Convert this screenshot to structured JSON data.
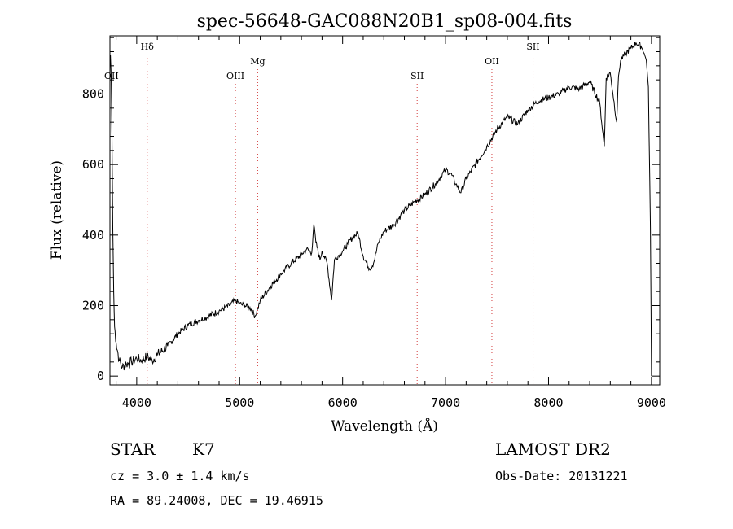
{
  "chart_data": {
    "type": "line",
    "title": "spec-56648-GAC088N20B1_sp08-004.fits",
    "xlabel": "Wavelength (Å)",
    "ylabel": "Flux (relative)",
    "xlim": [
      3740,
      9080
    ],
    "ylim": [
      -25,
      965
    ],
    "x_ticks": [
      4000,
      5000,
      6000,
      7000,
      8000,
      9000
    ],
    "y_ticks": [
      0,
      200,
      400,
      600,
      800
    ],
    "grid": false,
    "line_marks": [
      {
        "label": "OII",
        "wavelength": 3727,
        "tier": 2
      },
      {
        "label": "Hδ",
        "wavelength": 4102,
        "tier": 0
      },
      {
        "label": "OIII",
        "wavelength": 4959,
        "tier": 2
      },
      {
        "label": "Mg",
        "wavelength": 5175,
        "tier": 1
      },
      {
        "label": "SII",
        "wavelength": 6724,
        "tier": 2
      },
      {
        "label": "OII",
        "wavelength": 7450,
        "tier": 1
      },
      {
        "label": "SII",
        "wavelength": 7850,
        "tier": 0
      }
    ],
    "series": [
      {
        "points": [
          [
            3745,
            910
          ],
          [
            3752,
            850
          ],
          [
            3760,
            680
          ],
          [
            3768,
            420
          ],
          [
            3776,
            240
          ],
          [
            3785,
            140
          ],
          [
            3800,
            95
          ],
          [
            3830,
            45
          ],
          [
            3860,
            25
          ],
          [
            3900,
            35
          ],
          [
            3950,
            40
          ],
          [
            4000,
            50
          ],
          [
            4050,
            45
          ],
          [
            4100,
            55
          ],
          [
            4150,
            45
          ],
          [
            4200,
            60
          ],
          [
            4300,
            85
          ],
          [
            4400,
            120
          ],
          [
            4500,
            145
          ],
          [
            4600,
            158
          ],
          [
            4700,
            170
          ],
          [
            4800,
            185
          ],
          [
            4900,
            200
          ],
          [
            4960,
            215
          ],
          [
            5000,
            205
          ],
          [
            5050,
            200
          ],
          [
            5100,
            195
          ],
          [
            5150,
            170
          ],
          [
            5175,
            190
          ],
          [
            5200,
            215
          ],
          [
            5300,
            255
          ],
          [
            5400,
            290
          ],
          [
            5500,
            320
          ],
          [
            5600,
            345
          ],
          [
            5650,
            360
          ],
          [
            5700,
            350
          ],
          [
            5720,
            430
          ],
          [
            5740,
            380
          ],
          [
            5780,
            330
          ],
          [
            5800,
            355
          ],
          [
            5850,
            320
          ],
          [
            5893,
            215
          ],
          [
            5920,
            330
          ],
          [
            6000,
            355
          ],
          [
            6050,
            375
          ],
          [
            6100,
            395
          ],
          [
            6150,
            405
          ],
          [
            6200,
            340
          ],
          [
            6260,
            305
          ],
          [
            6300,
            320
          ],
          [
            6350,
            380
          ],
          [
            6400,
            410
          ],
          [
            6500,
            430
          ],
          [
            6563,
            455
          ],
          [
            6600,
            470
          ],
          [
            6700,
            495
          ],
          [
            6800,
            515
          ],
          [
            6900,
            545
          ],
          [
            6950,
            565
          ],
          [
            7000,
            585
          ],
          [
            7050,
            575
          ],
          [
            7100,
            545
          ],
          [
            7150,
            520
          ],
          [
            7200,
            560
          ],
          [
            7300,
            605
          ],
          [
            7400,
            650
          ],
          [
            7500,
            700
          ],
          [
            7600,
            735
          ],
          [
            7700,
            715
          ],
          [
            7800,
            755
          ],
          [
            7900,
            780
          ],
          [
            8000,
            790
          ],
          [
            8100,
            800
          ],
          [
            8200,
            820
          ],
          [
            8300,
            815
          ],
          [
            8400,
            835
          ],
          [
            8498,
            775
          ],
          [
            8542,
            650
          ],
          [
            8560,
            845
          ],
          [
            8600,
            860
          ],
          [
            8662,
            720
          ],
          [
            8680,
            850
          ],
          [
            8700,
            895
          ],
          [
            8750,
            915
          ],
          [
            8800,
            930
          ],
          [
            8850,
            945
          ],
          [
            8900,
            935
          ],
          [
            8930,
            915
          ],
          [
            8950,
            895
          ],
          [
            8970,
            820
          ],
          [
            8990,
            420
          ],
          [
            9000,
            0
          ]
        ]
      }
    ]
  },
  "caption": {
    "object_class": "STAR",
    "subclass": "K7",
    "survey": "LAMOST DR2",
    "redshift": "cz = 3.0 ± 1.4 km/s",
    "obs_date": "Obs-Date: 20131221",
    "coords": "RA =  89.24008, DEC =  19.46915"
  }
}
